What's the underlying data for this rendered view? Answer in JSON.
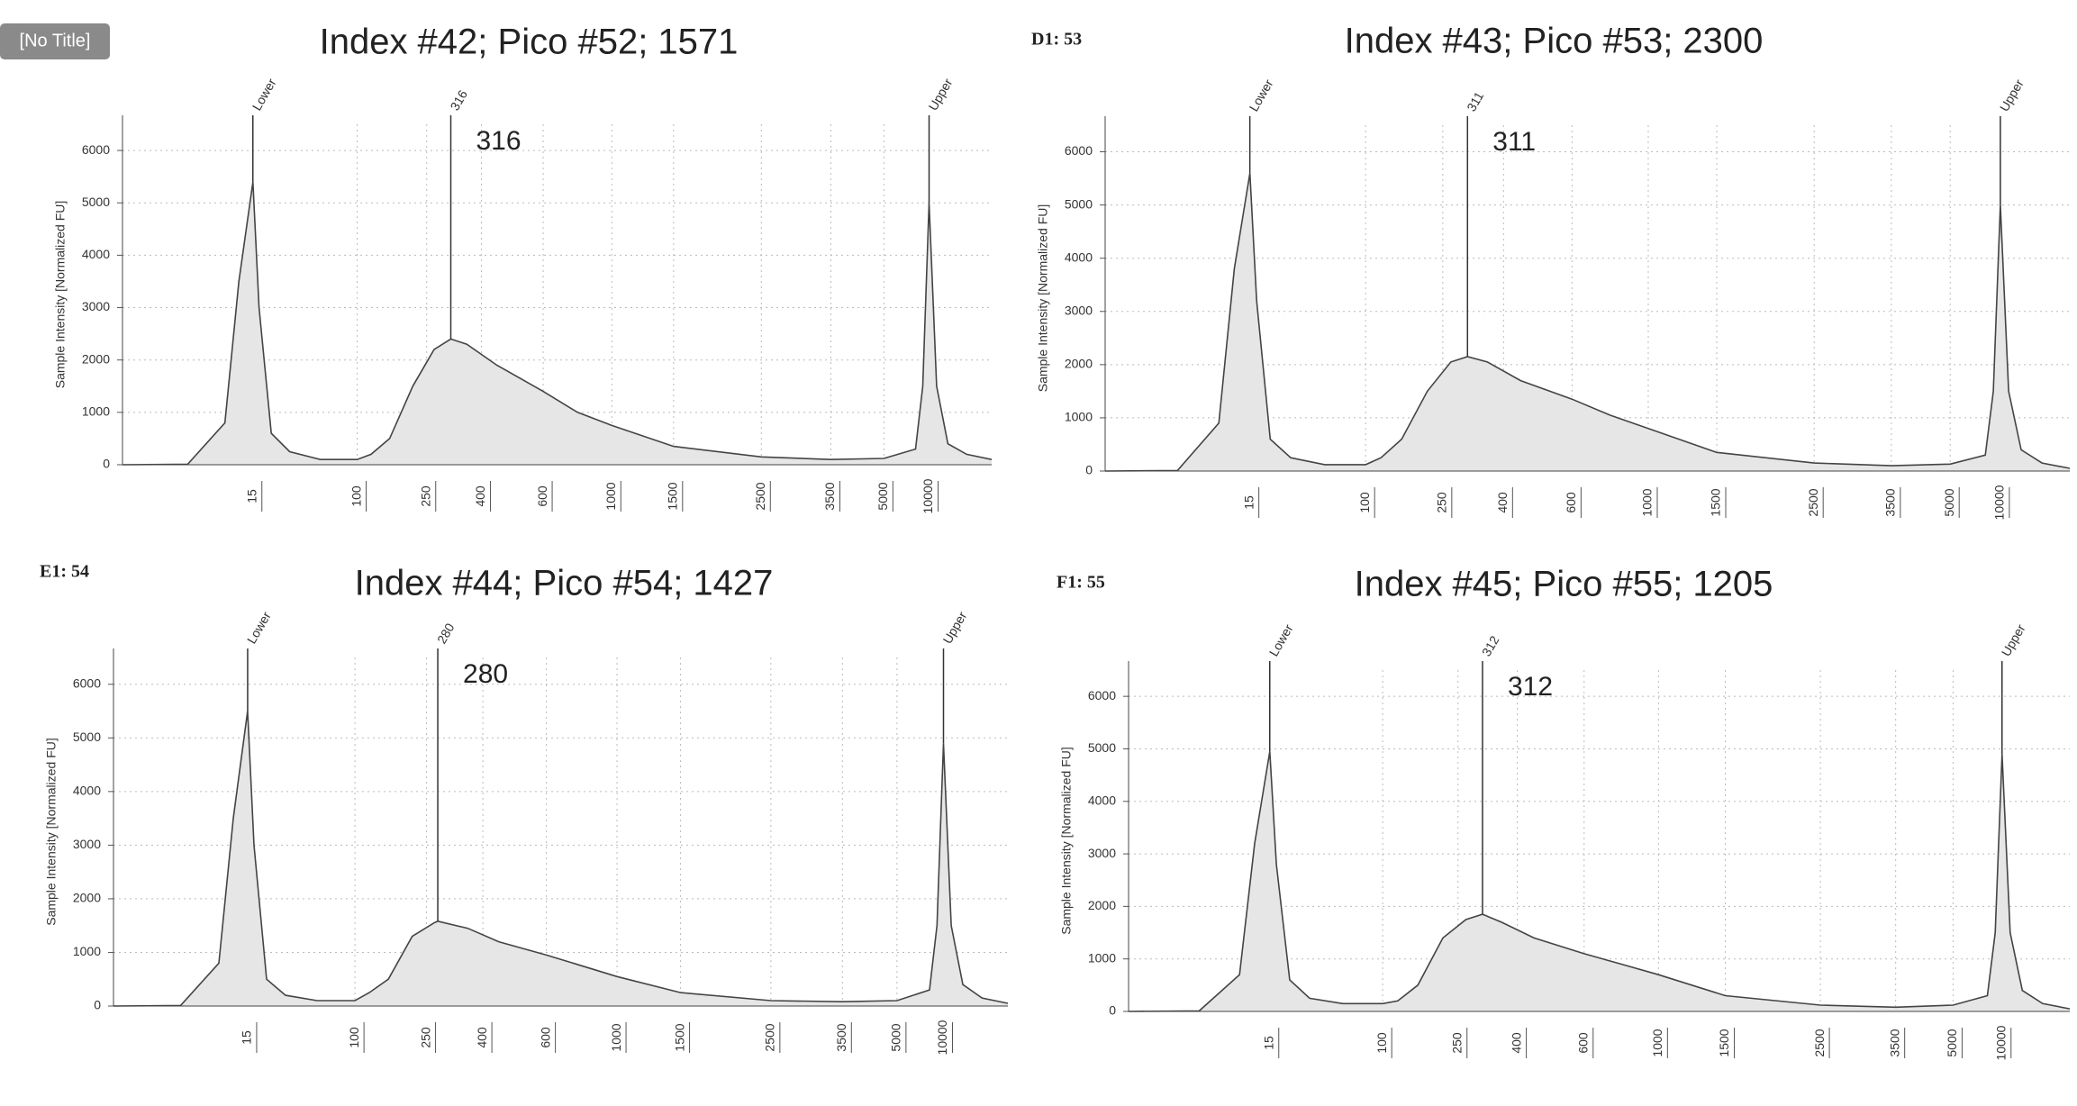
{
  "chart_data": [
    {
      "type": "line",
      "label": "[No Title]",
      "title": "Index #42; Pico #52; 1571",
      "y_label": "Sample Intensity [Normalized FU]",
      "x": [
        1,
        8,
        12,
        13.5,
        15,
        20,
        30,
        45,
        70,
        100,
        130,
        170,
        220,
        270,
        316,
        360,
        450,
        600,
        800,
        1000,
        1500,
        2500,
        3500,
        5000,
        8500,
        9300,
        10000,
        10600,
        11500,
        13000,
        15000
      ],
      "values": [
        0,
        10,
        800,
        3500,
        5400,
        3000,
        600,
        250,
        100,
        100,
        200,
        500,
        1500,
        2200,
        2400,
        2300,
        1900,
        1400,
        1000,
        750,
        350,
        150,
        100,
        120,
        300,
        1500,
        5000,
        1500,
        400,
        200,
        100
      ],
      "xlim": [
        1,
        15000
      ],
      "xticks": [
        15,
        100,
        250,
        400,
        600,
        1000,
        1500,
        2500,
        3500,
        5000,
        10000
      ],
      "ylim": [
        0,
        6500
      ],
      "yticks": [
        0,
        1000,
        2000,
        3000,
        4000,
        5000,
        6000
      ],
      "grid": true,
      "peaks": [
        {
          "x": 15,
          "label": "Lower"
        },
        {
          "x": 316
        },
        {
          "x": 10000,
          "label": "Upper"
        }
      ],
      "annotation": 316,
      "color": "#444444",
      "fill": "#e6e6e6"
    },
    {
      "type": "line",
      "label": "D1: 53",
      "title": "Index #43; Pico #53; 2300",
      "y_label": "Sample Intensity [Normalized FU]",
      "x": [
        1,
        8,
        12,
        13.5,
        15,
        20,
        30,
        45,
        70,
        100,
        130,
        170,
        220,
        270,
        311,
        360,
        450,
        600,
        800,
        1000,
        1500,
        2500,
        3500,
        5000,
        8500,
        9300,
        10000,
        10600,
        11500,
        13000,
        15000
      ],
      "values": [
        0,
        10,
        900,
        3800,
        5600,
        3200,
        600,
        250,
        120,
        120,
        250,
        600,
        1500,
        2050,
        2150,
        2050,
        1700,
        1350,
        1050,
        800,
        350,
        150,
        100,
        130,
        300,
        1500,
        5000,
        1500,
        400,
        150,
        50
      ],
      "xlim": [
        1,
        15000
      ],
      "xticks": [
        15,
        100,
        250,
        400,
        600,
        1000,
        1500,
        2500,
        3500,
        5000,
        10000
      ],
      "ylim": [
        0,
        6500
      ],
      "yticks": [
        0,
        1000,
        2000,
        3000,
        4000,
        5000,
        6000
      ],
      "grid": true,
      "peaks": [
        {
          "x": 15,
          "label": "Lower"
        },
        {
          "x": 311
        },
        {
          "x": 10000,
          "label": "Upper"
        }
      ],
      "annotation": 311,
      "color": "#444444",
      "fill": "#e6e6e6"
    },
    {
      "type": "line",
      "label": "E1: 54",
      "title": "Index #44; Pico #54; 1427",
      "y_label": "Sample Intensity [Normalized FU]",
      "x": [
        1,
        8,
        12,
        13.5,
        15,
        20,
        30,
        45,
        70,
        100,
        130,
        170,
        220,
        270,
        280,
        360,
        450,
        600,
        800,
        1000,
        1500,
        2500,
        3500,
        5000,
        8500,
        9300,
        10000,
        10600,
        11500,
        13000,
        15000
      ],
      "values": [
        0,
        10,
        800,
        3500,
        5500,
        3000,
        500,
        200,
        100,
        100,
        250,
        500,
        1300,
        1550,
        1580,
        1450,
        1200,
        950,
        750,
        550,
        250,
        100,
        80,
        100,
        300,
        1500,
        4900,
        1500,
        400,
        150,
        50
      ],
      "xlim": [
        1,
        15000
      ],
      "xticks": [
        15,
        100,
        250,
        400,
        600,
        1000,
        1500,
        2500,
        3500,
        5000,
        10000
      ],
      "ylim": [
        0,
        6500
      ],
      "yticks": [
        0,
        1000,
        2000,
        3000,
        4000,
        5000,
        6000
      ],
      "grid": true,
      "peaks": [
        {
          "x": 15,
          "label": "Lower"
        },
        {
          "x": 280
        },
        {
          "x": 10000,
          "label": "Upper"
        }
      ],
      "annotation": 280,
      "color": "#444444",
      "fill": "#e6e6e6"
    },
    {
      "type": "line",
      "label": "F1: 55",
      "title": "Index #45; Pico #55; 1205",
      "y_label": "Sample Intensity [Normalized FU]",
      "x": [
        1,
        8,
        12,
        13.5,
        15,
        20,
        30,
        45,
        70,
        100,
        130,
        170,
        220,
        270,
        312,
        360,
        450,
        600,
        800,
        1000,
        1500,
        2500,
        3500,
        5000,
        8500,
        9300,
        10000,
        10600,
        11500,
        13000,
        15000
      ],
      "values": [
        0,
        10,
        700,
        3200,
        4950,
        2800,
        600,
        250,
        150,
        150,
        200,
        500,
        1400,
        1750,
        1850,
        1700,
        1400,
        1100,
        900,
        700,
        300,
        120,
        80,
        120,
        300,
        1500,
        4900,
        1500,
        400,
        150,
        50
      ],
      "xlim": [
        1,
        15000
      ],
      "xticks": [
        15,
        100,
        250,
        400,
        600,
        1000,
        1500,
        2500,
        3500,
        5000,
        10000
      ],
      "ylim": [
        0,
        6500
      ],
      "yticks": [
        0,
        1000,
        2000,
        3000,
        4000,
        5000,
        6000
      ],
      "grid": true,
      "peaks": [
        {
          "x": 15,
          "label": "Lower"
        },
        {
          "x": 312
        },
        {
          "x": 10000,
          "label": "Upper"
        }
      ],
      "annotation": 312,
      "color": "#444444",
      "fill": "#e6e6e6"
    }
  ]
}
